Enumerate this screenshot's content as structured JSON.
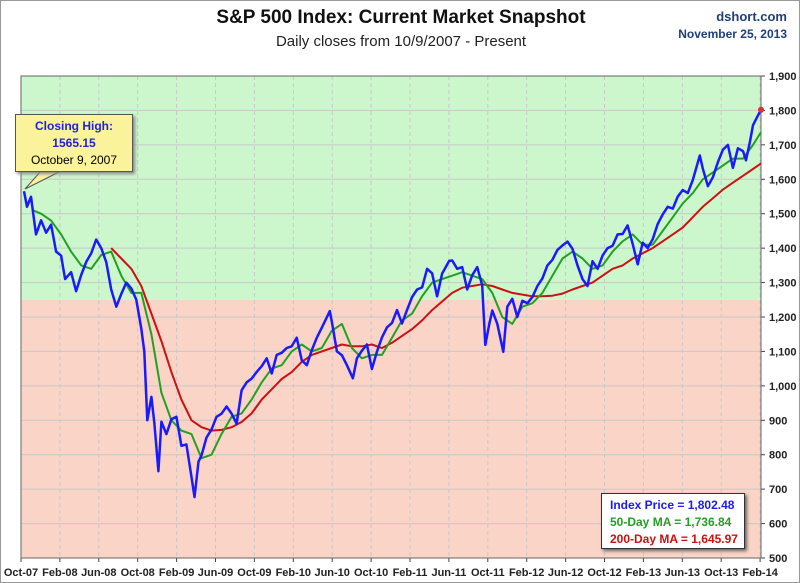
{
  "header": {
    "title": "S&P 500 Index: Current Market Snapshot",
    "subtitle": "Daily closes from 10/9/2007 - Present",
    "brand": "dshort.com",
    "date": "November 25, 2013"
  },
  "callout": {
    "line1": "Closing High:",
    "line2": "1565.15",
    "line3": "October 9, 2007"
  },
  "legend": {
    "price": "Index Price =  1,802.48",
    "ma50": "50-Day MA = 1,736.84",
    "ma200": "200-Day MA = 1,645.97"
  },
  "colors": {
    "price": "#1a1aff",
    "ma50": "#22a022",
    "ma200": "#cc1111",
    "green_zone": "#ccf7cc",
    "red_zone": "#fad4c6"
  },
  "chart_data": {
    "type": "line",
    "title": "S&P 500 Index: Current Market Snapshot",
    "x_unit": "months since Oct 2007",
    "xlim": [
      0,
      73.8
    ],
    "x_tick_labels": [
      "Oct-07",
      "Feb-08",
      "Jun-08",
      "Oct-08",
      "Feb-09",
      "Jun-09",
      "Oct-09",
      "Feb-10",
      "Jun-10",
      "Oct-10",
      "Feb-11",
      "Jun-11",
      "Oct-11",
      "Feb-12",
      "Jun-12",
      "Oct-12",
      "Feb-13",
      "Jun-13",
      "Oct-13",
      "Feb-14"
    ],
    "ylim": [
      500,
      1900
    ],
    "y_ticks": [
      500,
      600,
      700,
      800,
      900,
      1000,
      1100,
      1200,
      1300,
      1400,
      1500,
      1600,
      1700,
      1800,
      1900
    ],
    "y_tick_labels": [
      "500",
      "600",
      "700",
      "800",
      "900",
      "1,000",
      "1,100",
      "1,200",
      "1,300",
      "1,400",
      "1,500",
      "1,600",
      "1,700",
      "1,800",
      "1,900"
    ],
    "zone_split": 1250,
    "series": [
      {
        "name": "Index Price",
        "points": [
          [
            0.3,
            1565
          ],
          [
            0.6,
            1520
          ],
          [
            1,
            1549
          ],
          [
            1.5,
            1440
          ],
          [
            2,
            1481
          ],
          [
            2.5,
            1445
          ],
          [
            3,
            1468
          ],
          [
            3.5,
            1390
          ],
          [
            4,
            1378
          ],
          [
            4.4,
            1310
          ],
          [
            5,
            1330
          ],
          [
            5.5,
            1275
          ],
          [
            6,
            1322
          ],
          [
            6.5,
            1360
          ],
          [
            7,
            1385
          ],
          [
            7.5,
            1425
          ],
          [
            8,
            1400
          ],
          [
            8.5,
            1360
          ],
          [
            9,
            1280
          ],
          [
            9.5,
            1230
          ],
          [
            10,
            1267
          ],
          [
            10.5,
            1300
          ],
          [
            11,
            1283
          ],
          [
            11.5,
            1250
          ],
          [
            12,
            1166
          ],
          [
            12.3,
            1100
          ],
          [
            12.6,
            900
          ],
          [
            13,
            968
          ],
          [
            13.3,
            890
          ],
          [
            13.7,
            752
          ],
          [
            14,
            896
          ],
          [
            14.5,
            860
          ],
          [
            15,
            903
          ],
          [
            15.5,
            910
          ],
          [
            16,
            826
          ],
          [
            16.5,
            830
          ],
          [
            17,
            735
          ],
          [
            17.3,
            677
          ],
          [
            17.7,
            780
          ],
          [
            18,
            798
          ],
          [
            18.5,
            850
          ],
          [
            19,
            873
          ],
          [
            19.5,
            910
          ],
          [
            20,
            919
          ],
          [
            20.5,
            940
          ],
          [
            21,
            919
          ],
          [
            21.5,
            890
          ],
          [
            22,
            987
          ],
          [
            22.5,
            1010
          ],
          [
            23,
            1021
          ],
          [
            23.5,
            1040
          ],
          [
            24,
            1057
          ],
          [
            24.5,
            1080
          ],
          [
            25,
            1036
          ],
          [
            25.5,
            1090
          ],
          [
            26,
            1096
          ],
          [
            26.5,
            1110
          ],
          [
            27,
            1115
          ],
          [
            27.5,
            1140
          ],
          [
            28,
            1074
          ],
          [
            28.5,
            1060
          ],
          [
            29,
            1104
          ],
          [
            29.5,
            1140
          ],
          [
            30,
            1169
          ],
          [
            30.8,
            1217
          ],
          [
            31,
            1187
          ],
          [
            31.5,
            1100
          ],
          [
            32,
            1089
          ],
          [
            32.5,
            1060
          ],
          [
            33.1,
            1022
          ],
          [
            33.5,
            1080
          ],
          [
            34,
            1102
          ],
          [
            34.5,
            1120
          ],
          [
            35,
            1049
          ],
          [
            35.5,
            1100
          ],
          [
            36,
            1141
          ],
          [
            36.5,
            1170
          ],
          [
            37,
            1183
          ],
          [
            37.5,
            1220
          ],
          [
            38,
            1181
          ],
          [
            38.5,
            1220
          ],
          [
            39,
            1258
          ],
          [
            39.5,
            1280
          ],
          [
            40,
            1286
          ],
          [
            40.5,
            1340
          ],
          [
            41,
            1327
          ],
          [
            41.5,
            1260
          ],
          [
            42,
            1326
          ],
          [
            42.7,
            1363
          ],
          [
            43,
            1364
          ],
          [
            43.5,
            1340
          ],
          [
            44,
            1345
          ],
          [
            44.5,
            1280
          ],
          [
            45,
            1321
          ],
          [
            45.5,
            1345
          ],
          [
            46,
            1292
          ],
          [
            46.3,
            1119
          ],
          [
            46.7,
            1180
          ],
          [
            47,
            1219
          ],
          [
            47.5,
            1180
          ],
          [
            48.1,
            1099
          ],
          [
            48.5,
            1230
          ],
          [
            49,
            1253
          ],
          [
            49.5,
            1200
          ],
          [
            50,
            1247
          ],
          [
            50.5,
            1240
          ],
          [
            51,
            1258
          ],
          [
            51.5,
            1290
          ],
          [
            52,
            1312
          ],
          [
            52.5,
            1350
          ],
          [
            53,
            1366
          ],
          [
            53.5,
            1395
          ],
          [
            54,
            1408
          ],
          [
            54.5,
            1419
          ],
          [
            55,
            1398
          ],
          [
            55.5,
            1350
          ],
          [
            56,
            1310
          ],
          [
            56.5,
            1290
          ],
          [
            57,
            1362
          ],
          [
            57.5,
            1340
          ],
          [
            58,
            1379
          ],
          [
            58.5,
            1400
          ],
          [
            59,
            1407
          ],
          [
            59.5,
            1440
          ],
          [
            60,
            1441
          ],
          [
            60.5,
            1466
          ],
          [
            61,
            1412
          ],
          [
            61.5,
            1353
          ],
          [
            62,
            1416
          ],
          [
            62.5,
            1400
          ],
          [
            63,
            1426
          ],
          [
            63.5,
            1470
          ],
          [
            64,
            1498
          ],
          [
            64.5,
            1520
          ],
          [
            65,
            1515
          ],
          [
            65.5,
            1550
          ],
          [
            66,
            1569
          ],
          [
            66.5,
            1560
          ],
          [
            67,
            1598
          ],
          [
            67.7,
            1669
          ],
          [
            68,
            1631
          ],
          [
            68.5,
            1580
          ],
          [
            69,
            1606
          ],
          [
            69.5,
            1650
          ],
          [
            70,
            1686
          ],
          [
            70.5,
            1700
          ],
          [
            71,
            1633
          ],
          [
            71.5,
            1690
          ],
          [
            72,
            1682
          ],
          [
            72.3,
            1655
          ],
          [
            72.7,
            1710
          ],
          [
            73,
            1757
          ],
          [
            73.4,
            1780
          ],
          [
            73.8,
            1802
          ]
        ]
      },
      {
        "name": "50-Day MA",
        "points": [
          [
            1.2,
            1510
          ],
          [
            2,
            1500
          ],
          [
            3,
            1480
          ],
          [
            4,
            1440
          ],
          [
            5,
            1390
          ],
          [
            6,
            1350
          ],
          [
            7,
            1340
          ],
          [
            8,
            1380
          ],
          [
            9,
            1390
          ],
          [
            10,
            1320
          ],
          [
            11,
            1270
          ],
          [
            12,
            1270
          ],
          [
            13,
            1150
          ],
          [
            14,
            980
          ],
          [
            15,
            900
          ],
          [
            16,
            870
          ],
          [
            17,
            860
          ],
          [
            18,
            790
          ],
          [
            19,
            800
          ],
          [
            20,
            860
          ],
          [
            21,
            910
          ],
          [
            22,
            920
          ],
          [
            23,
            960
          ],
          [
            24,
            1010
          ],
          [
            25,
            1050
          ],
          [
            26,
            1060
          ],
          [
            27,
            1100
          ],
          [
            28,
            1120
          ],
          [
            29,
            1100
          ],
          [
            30,
            1110
          ],
          [
            31,
            1160
          ],
          [
            32,
            1180
          ],
          [
            33,
            1110
          ],
          [
            34,
            1080
          ],
          [
            35,
            1090
          ],
          [
            36,
            1090
          ],
          [
            37,
            1140
          ],
          [
            38,
            1190
          ],
          [
            39,
            1210
          ],
          [
            40,
            1260
          ],
          [
            41,
            1300
          ],
          [
            42,
            1310
          ],
          [
            43,
            1320
          ],
          [
            44,
            1330
          ],
          [
            45,
            1320
          ],
          [
            46,
            1310
          ],
          [
            47,
            1270
          ],
          [
            48,
            1200
          ],
          [
            49,
            1180
          ],
          [
            50,
            1230
          ],
          [
            51,
            1240
          ],
          [
            52,
            1270
          ],
          [
            53,
            1320
          ],
          [
            54,
            1370
          ],
          [
            55,
            1390
          ],
          [
            56,
            1370
          ],
          [
            57,
            1340
          ],
          [
            58,
            1350
          ],
          [
            59,
            1390
          ],
          [
            60,
            1420
          ],
          [
            61,
            1440
          ],
          [
            62,
            1410
          ],
          [
            63,
            1410
          ],
          [
            64,
            1450
          ],
          [
            65,
            1490
          ],
          [
            66,
            1530
          ],
          [
            67,
            1560
          ],
          [
            68,
            1600
          ],
          [
            69,
            1620
          ],
          [
            70,
            1640
          ],
          [
            71,
            1660
          ],
          [
            72,
            1660
          ],
          [
            73,
            1700
          ],
          [
            73.8,
            1737
          ]
        ]
      },
      {
        "name": "200-Day MA",
        "points": [
          [
            9,
            1400
          ],
          [
            10,
            1370
          ],
          [
            11,
            1340
          ],
          [
            12,
            1290
          ],
          [
            13,
            1210
          ],
          [
            14,
            1130
          ],
          [
            15,
            1040
          ],
          [
            16,
            960
          ],
          [
            17,
            900
          ],
          [
            18,
            880
          ],
          [
            19,
            870
          ],
          [
            20,
            872
          ],
          [
            21,
            880
          ],
          [
            22,
            895
          ],
          [
            23,
            920
          ],
          [
            24,
            960
          ],
          [
            25,
            990
          ],
          [
            26,
            1020
          ],
          [
            27,
            1040
          ],
          [
            28,
            1070
          ],
          [
            29,
            1090
          ],
          [
            30,
            1100
          ],
          [
            31,
            1110
          ],
          [
            32,
            1120
          ],
          [
            33,
            1115
          ],
          [
            34,
            1115
          ],
          [
            35,
            1120
          ],
          [
            36,
            1110
          ],
          [
            37,
            1125
          ],
          [
            38,
            1145
          ],
          [
            39,
            1165
          ],
          [
            40,
            1190
          ],
          [
            41,
            1220
          ],
          [
            42,
            1245
          ],
          [
            43,
            1270
          ],
          [
            44,
            1285
          ],
          [
            45,
            1290
          ],
          [
            46,
            1295
          ],
          [
            47,
            1290
          ],
          [
            48,
            1280
          ],
          [
            49,
            1270
          ],
          [
            50,
            1265
          ],
          [
            51,
            1260
          ],
          [
            52,
            1260
          ],
          [
            53,
            1262
          ],
          [
            54,
            1268
          ],
          [
            55,
            1280
          ],
          [
            56,
            1290
          ],
          [
            57,
            1300
          ],
          [
            58,
            1320
          ],
          [
            59,
            1340
          ],
          [
            60,
            1350
          ],
          [
            61,
            1370
          ],
          [
            62,
            1385
          ],
          [
            63,
            1400
          ],
          [
            64,
            1420
          ],
          [
            65,
            1440
          ],
          [
            66,
            1460
          ],
          [
            67,
            1490
          ],
          [
            68,
            1520
          ],
          [
            69,
            1545
          ],
          [
            70,
            1570
          ],
          [
            71,
            1590
          ],
          [
            72,
            1610
          ],
          [
            73,
            1630
          ],
          [
            73.8,
            1646
          ]
        ]
      }
    ]
  }
}
